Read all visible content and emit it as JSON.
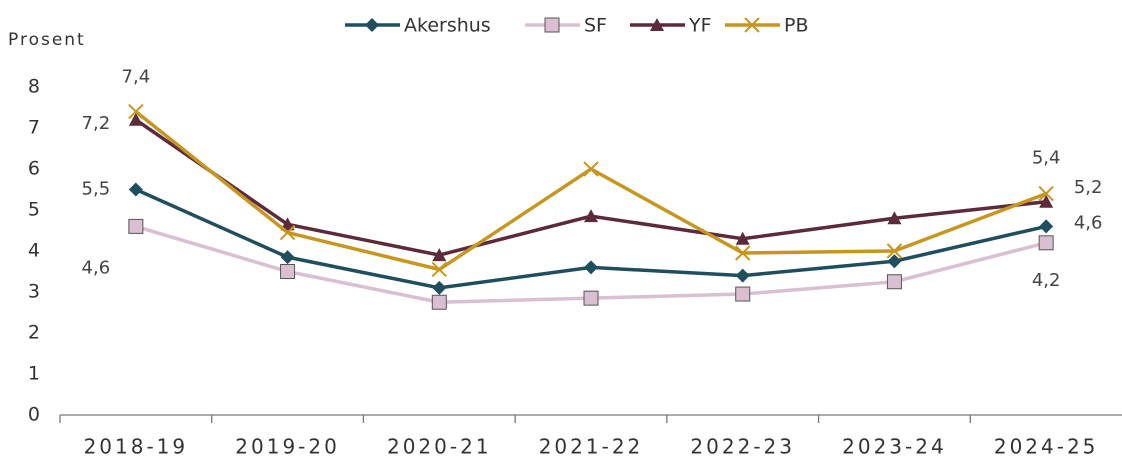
{
  "chart_data": {
    "type": "line",
    "y_label": "Prosent",
    "categories": [
      "2018-19",
      "2019-20",
      "2020-21",
      "2021-22",
      "2022-23",
      "2023-24",
      "2024-25"
    ],
    "series": [
      {
        "name": "Akershus",
        "color": "#1f4e5f",
        "marker": "diamond",
        "values": [
          5.5,
          3.85,
          3.1,
          3.6,
          3.4,
          3.75,
          4.6
        ],
        "value_labels": [
          "5,5",
          null,
          null,
          null,
          null,
          null,
          "4,6"
        ]
      },
      {
        "name": "SF",
        "color": "#d9bfd1",
        "marker": "square",
        "values": [
          4.6,
          3.5,
          2.75,
          2.85,
          2.95,
          3.25,
          4.2
        ],
        "value_labels": [
          "4,6",
          null,
          null,
          null,
          null,
          null,
          "4,2"
        ]
      },
      {
        "name": "YF",
        "color": "#5c2a3c",
        "marker": "triangle",
        "values": [
          7.2,
          4.65,
          3.9,
          4.85,
          4.3,
          4.8,
          5.2
        ],
        "value_labels": [
          "7,2",
          null,
          null,
          null,
          null,
          null,
          "5,2"
        ]
      },
      {
        "name": "PB",
        "color": "#c8961e",
        "marker": "x",
        "values": [
          7.4,
          4.45,
          3.55,
          6.0,
          3.95,
          4.0,
          5.4
        ],
        "value_labels": [
          "7,4",
          null,
          null,
          null,
          null,
          null,
          "5,4"
        ]
      }
    ],
    "ylim": [
      0,
      8
    ],
    "yticks": [
      0,
      1,
      2,
      3,
      4,
      5,
      6,
      7,
      8
    ],
    "grid": false,
    "legend": "top"
  }
}
